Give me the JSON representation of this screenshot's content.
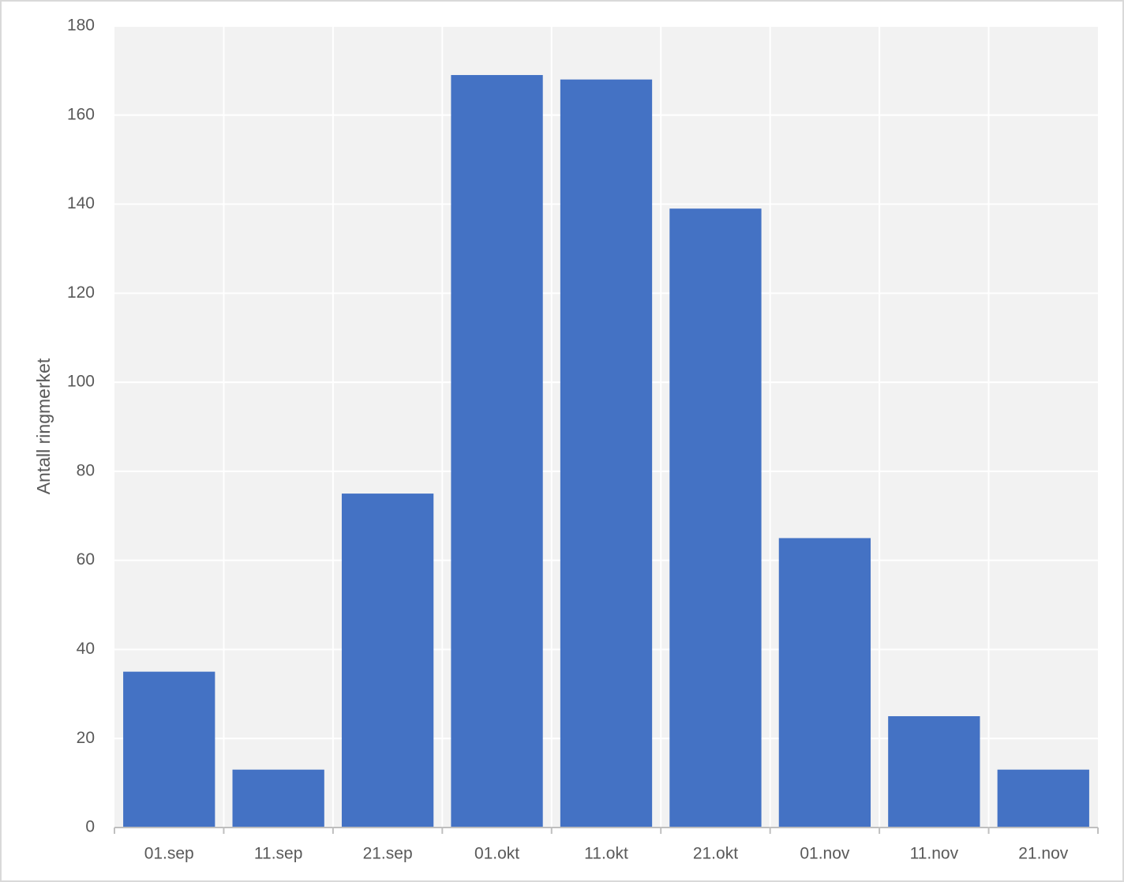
{
  "chart_data": {
    "type": "bar",
    "y_label": "Antall ringmerket",
    "categories": [
      "01.sep",
      "11.sep",
      "21.sep",
      "01.okt",
      "11.okt",
      "21.okt",
      "01.nov",
      "11.nov",
      "21.nov"
    ],
    "values": [
      35,
      13,
      75,
      169,
      168,
      139,
      65,
      25,
      13
    ],
    "color": "#4472c4",
    "ylim": [
      0,
      180
    ],
    "yticks": [
      0,
      20,
      40,
      60,
      80,
      100,
      120,
      140,
      160,
      180
    ],
    "grid": true
  }
}
